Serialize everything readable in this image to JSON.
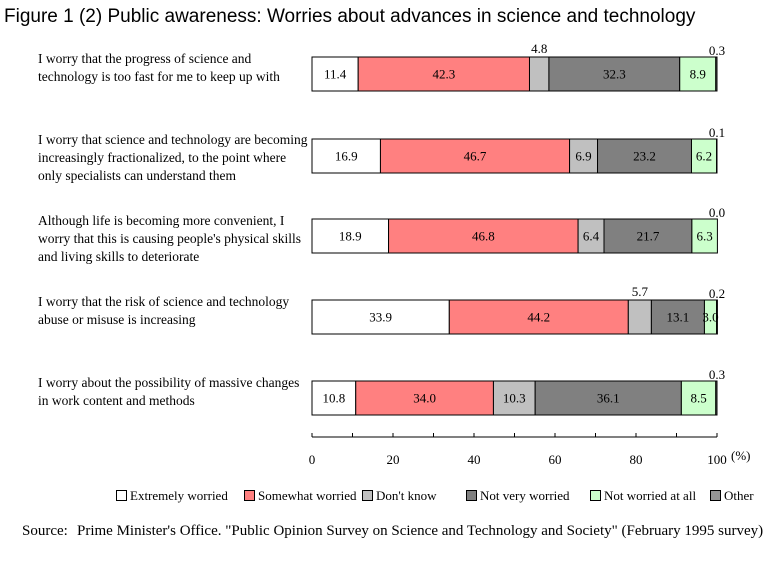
{
  "title": "Figure 1 (2) Public awareness: Worries about advances in science and technology",
  "source_label": "Source:",
  "source_text": "Prime Minister's Office. \"Public Opinion Survey on Science and Technology and Society\" (February 1995 survey)",
  "chart_data": {
    "type": "bar",
    "orientation": "horizontal",
    "stacked": true,
    "categories": [
      "I worry that the progress of science and\ntechnology is too fast for me to keep up with",
      "I worry that science and technology are becoming\nincreasingly fractionalized, to the point where\nonly specialists can understand them",
      "Although life is becoming more convenient, I\nworry that this is causing people's physical skills\nand living skills to deteriorate",
      "I worry that the risk of science and technology\nabuse or misuse is increasing",
      "I worry about the possibility of massive changes\nin work content and methods"
    ],
    "series": [
      {
        "name": "Extremely worried",
        "color": "#ffffff",
        "values": [
          11.4,
          16.9,
          18.9,
          33.9,
          10.8
        ]
      },
      {
        "name": "Somewhat worried",
        "color": "#ff8080",
        "values": [
          42.3,
          46.7,
          46.8,
          44.2,
          34.0
        ]
      },
      {
        "name": "Don't know",
        "color": "#c0c0c0",
        "values": [
          4.8,
          6.9,
          6.4,
          5.7,
          10.3
        ]
      },
      {
        "name": "Not very worried",
        "color": "#808080",
        "values": [
          32.3,
          23.2,
          21.7,
          13.1,
          36.1
        ]
      },
      {
        "name": "Not worried at all",
        "color": "#ccffcc",
        "values": [
          8.9,
          6.2,
          6.3,
          3.0,
          8.5
        ]
      },
      {
        "name": "Other",
        "color": "#969696",
        "values": [
          0.3,
          0.1,
          0.0,
          0.2,
          0.3
        ]
      }
    ],
    "outside_labels": [
      "Don't know",
      "Other"
    ],
    "x_ticks": [
      0,
      20,
      40,
      60,
      80,
      100
    ],
    "x_unit": "(%)",
    "xlim": [
      0,
      100
    ],
    "legend_position": "bottom"
  }
}
